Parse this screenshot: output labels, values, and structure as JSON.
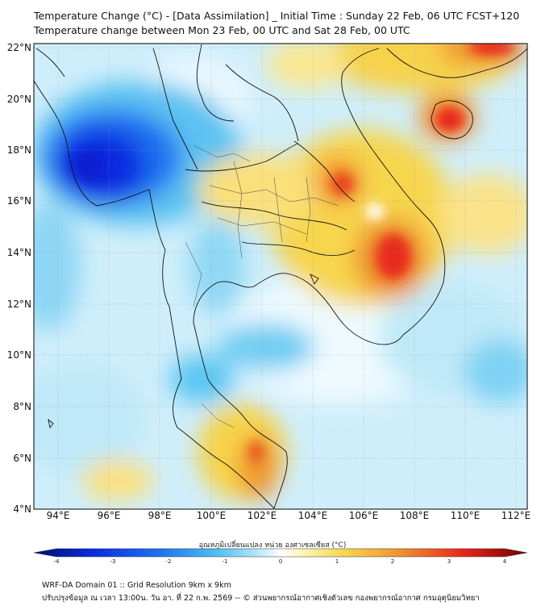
{
  "header": {
    "title_line1": "Temperature Change (°C) - [Data Assimilation] _ Initial Time : Sunday 22 Feb, 06 UTC FCST+120",
    "title_line2": "Temperature change between Mon 23 Feb, 00 UTC and Sat 28 Feb, 00 UTC"
  },
  "map": {
    "lat_labels": [
      "22°N",
      "20°N",
      "18°N",
      "16°N",
      "14°N",
      "12°N",
      "10°N",
      "8°N",
      "6°N",
      "4°N"
    ],
    "lon_labels": [
      "94°E",
      "96°E",
      "98°E",
      "100°E",
      "102°E",
      "104°E",
      "106°E",
      "108°E",
      "110°E",
      "112°E"
    ],
    "lat_range": [
      4,
      22.2
    ],
    "lon_range": [
      93.1,
      112.5
    ],
    "variable": "temperature change (°C)"
  },
  "colorbar": {
    "title": "อุณหภูมิเปลี่ยนแปลง หน่วย องศาเซลเซียส (°C)",
    "min": -4,
    "max": 4,
    "ticks": [
      "-4",
      "-3",
      "-2",
      "-1",
      "0",
      "1",
      "2",
      "3",
      "4"
    ]
  },
  "footer": {
    "line1": "WRF-DA Domain 01 :: Grid Resolution 9km x 9km",
    "line2": "ปรับปรุงข้อมูล ณ เวลา 13:00น. วัน อา. ที่ 22 ก.พ. 2569 -- © ส่วนพยากรณ์อากาศเชิงตัวเลข กองพยากรณ์อากาศ กรมอุตุนิยมวิทยา"
  },
  "colors": {
    "cold_deep": "#0a2be0",
    "cold": "#2aa8f0",
    "neutral": "#ffffff",
    "warm": "#f5d24a",
    "hot": "#e8261a"
  }
}
